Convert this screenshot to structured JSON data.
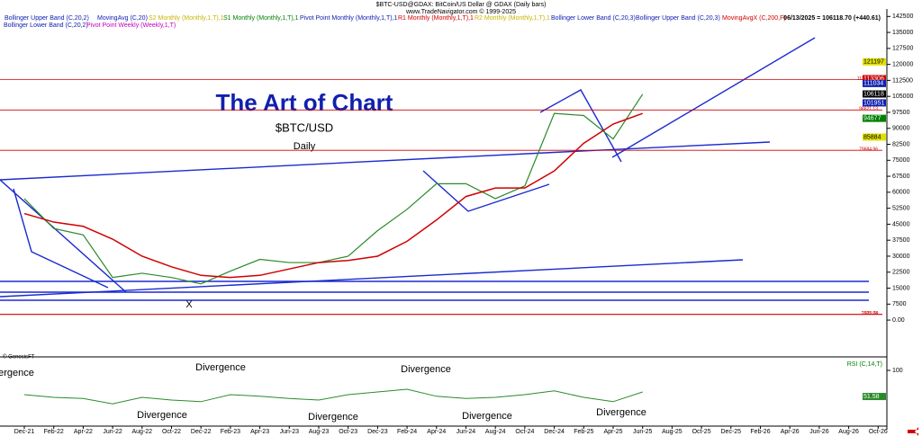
{
  "chart_data": {
    "type": "line",
    "header": "$BTC-USD@GDAX: BitCoin/US Dollar @ GDAX (Daily bars)",
    "subheader": "www.TradeNavigator.com © 1999-2025",
    "status": "06/13/2025 = 106118.70 (+440.61)",
    "title": "The Art of Chart",
    "subtitle": "$BTC/USD",
    "period": "Daily",
    "legend": [
      {
        "name": "Bollinger Upper Band (C,20,2)",
        "color": "#1020b0"
      },
      {
        "name": "MovingAvg (C,20)",
        "color": "#1020b0"
      },
      {
        "name": "S2 Monthly (Monthly,1,T),1",
        "color": "#c8b400"
      },
      {
        "name": "S1 Monthly (Monthly,1,T),1",
        "color": "#008000"
      },
      {
        "name": "Pivot Point Monthly (Monthly,1,T),1",
        "color": "#1020b0"
      },
      {
        "name": "R1 Monthly (Monthly,1,T),1",
        "color": "#d00000"
      },
      {
        "name": "R2 Monthly (Monthly,1,T),1",
        "color": "#c8b400"
      },
      {
        "name": "Bollinger Lower Band (C,20,3)",
        "color": "#1020b0"
      },
      {
        "name": "Bollinger Upper Band (C,20,3)",
        "color": "#1020b0"
      },
      {
        "name": "MovingAvgX (C,200,F)",
        "color": "#d00000"
      },
      {
        "name": "Bollinger Lower Band (C,20,2)",
        "color": "#1020b0"
      },
      {
        "name": "Pivot Point Weekly (Weekly,1,T)",
        "color": "#c000c0"
      }
    ],
    "categories": [
      "Dec-21",
      "Feb-22",
      "Apr-22",
      "Jun-22",
      "Aug-22",
      "Oct-22",
      "Dec-22",
      "Feb-23",
      "Apr-23",
      "Jun-23",
      "Aug-23",
      "Oct-23",
      "Dec-23",
      "Feb-24",
      "Apr-24",
      "Jun-24",
      "Aug-24",
      "Oct-24",
      "Dec-24",
      "Feb-25",
      "Apr-25",
      "Jun-25",
      "Aug-25",
      "Oct-25",
      "Dec-25",
      "Feb-26",
      "Apr-26",
      "Jun-26",
      "Aug-26",
      "Oct-26"
    ],
    "series": [
      {
        "name": "$BTC-USD",
        "color": "#2a8a2a",
        "values": [
          57000,
          43000,
          40000,
          20000,
          22000,
          20000,
          17000,
          23000,
          28500,
          27000,
          27000,
          30000,
          42000,
          52000,
          64000,
          64000,
          57000,
          63000,
          97000,
          96000,
          85000,
          106000,
          null,
          null,
          null,
          null,
          null,
          null,
          null,
          null
        ]
      },
      {
        "name": "MovingAvgX (C,200,F)",
        "color": "#d00000",
        "values": [
          50000,
          46000,
          44000,
          38000,
          30000,
          25000,
          21000,
          20000,
          21000,
          24000,
          27000,
          28000,
          30000,
          37000,
          47000,
          58000,
          62000,
          62000,
          70000,
          83000,
          92000,
          97000,
          null,
          null,
          null,
          null,
          null,
          null,
          null,
          null
        ]
      }
    ],
    "ylim": [
      -16000,
      146000
    ],
    "yticks": [
      142500,
      135000,
      127500,
      120000,
      112500,
      105000,
      97500,
      90000,
      82500,
      75000,
      67500,
      60000,
      52500,
      45000,
      37500,
      30000,
      22500,
      15000,
      7500,
      {
        "value": 0,
        "label": "0.00"
      }
    ],
    "levels": [
      {
        "value": 112872.99,
        "color": "#d00000"
      },
      {
        "value": 98621.13,
        "color": "#d00000"
      },
      {
        "value": 79684.96,
        "color": "#d00000"
      },
      {
        "value": 2772.04,
        "color": "#d00000"
      },
      {
        "value": 2605.78,
        "color": "#d00000"
      }
    ],
    "price_boxes": [
      {
        "value": 121197,
        "color": "#e0e000"
      },
      {
        "value": 113306,
        "color": "#d00000"
      },
      {
        "value": 111034,
        "color": "#1020b0"
      },
      {
        "value": 106118,
        "color": "#000000"
      },
      {
        "value": 101951,
        "color": "#1020b0"
      },
      {
        "value": 94677,
        "color": "#008000"
      },
      {
        "value": 85884,
        "color": "#e0e000"
      }
    ],
    "annotations": [
      "Divergence",
      "Divergence",
      "Divergence",
      "Divergence",
      "Divergence",
      "Divergence",
      "Divergence",
      "X",
      "© GenesisFT"
    ],
    "rsi": {
      "name": "RSI (C,14,T)",
      "color": "#2a8a2a",
      "values": [
        55,
        50,
        48,
        38,
        50,
        45,
        42,
        55,
        52,
        48,
        45,
        55,
        60,
        65,
        52,
        48,
        50,
        55,
        62,
        50,
        42,
        60,
        null,
        null,
        null,
        null,
        null,
        null,
        null,
        null
      ],
      "ylim": [
        0,
        100
      ],
      "yticks": [
        100
      ],
      "last": 51.58
    }
  }
}
